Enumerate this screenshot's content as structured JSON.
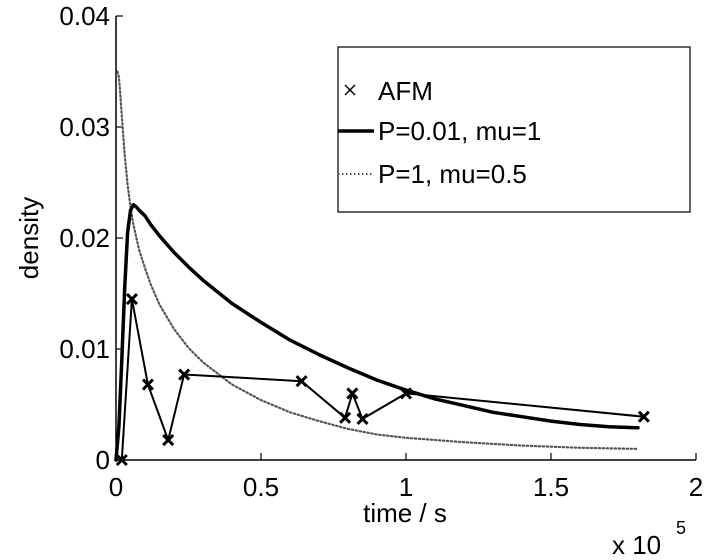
{
  "chart_data": {
    "type": "line",
    "xlabel": "time / s",
    "ylabel": "density",
    "x_multiplier_label": "x 10",
    "x_multiplier_exponent": "5",
    "xlim": [
      0,
      2
    ],
    "ylim": [
      0,
      0.04
    ],
    "x_ticks": [
      0,
      0.5,
      1,
      1.5,
      2
    ],
    "x_tick_labels": [
      "0",
      "0.5",
      "1",
      "1.5",
      "2"
    ],
    "y_ticks": [
      0,
      0.01,
      0.02,
      0.03,
      0.04
    ],
    "y_tick_labels": [
      "0",
      "0.01",
      "0.02",
      "0.03",
      "0.04"
    ],
    "grid": false,
    "legend_position": "top-right",
    "series": [
      {
        "name": "AFM",
        "style": "line-with-x-markers",
        "color": "#000000",
        "x": [
          0.02,
          0.055,
          0.11,
          0.18,
          0.235,
          0.64,
          0.79,
          0.815,
          0.85,
          1.0,
          1.82
        ],
        "y": [
          0.0,
          0.0145,
          0.0068,
          0.0018,
          0.0077,
          0.0071,
          0.0038,
          0.006,
          0.0037,
          0.006,
          0.0039
        ]
      },
      {
        "name": "P=0.01, mu=1",
        "style": "solid-thick",
        "color": "#000000",
        "x": [
          0.0,
          0.01,
          0.02,
          0.03,
          0.04,
          0.05,
          0.06,
          0.07,
          0.08,
          0.1,
          0.12,
          0.15,
          0.2,
          0.25,
          0.3,
          0.4,
          0.5,
          0.6,
          0.7,
          0.8,
          0.9,
          1.0,
          1.1,
          1.2,
          1.3,
          1.4,
          1.5,
          1.6,
          1.7,
          1.8
        ],
        "y": [
          0.0,
          0.003,
          0.009,
          0.0155,
          0.0205,
          0.0225,
          0.023,
          0.0228,
          0.0225,
          0.022,
          0.0212,
          0.0202,
          0.0187,
          0.0174,
          0.0162,
          0.0141,
          0.0124,
          0.0108,
          0.0095,
          0.0083,
          0.0072,
          0.0063,
          0.0055,
          0.0049,
          0.0043,
          0.0039,
          0.0035,
          0.0032,
          0.003,
          0.0029
        ]
      },
      {
        "name": "P=1, mu=0.5",
        "style": "dotted",
        "color": "#555555",
        "x": [
          0.005,
          0.01,
          0.015,
          0.02,
          0.03,
          0.04,
          0.05,
          0.06,
          0.08,
          0.1,
          0.12,
          0.15,
          0.2,
          0.25,
          0.3,
          0.4,
          0.5,
          0.6,
          0.7,
          0.8,
          0.9,
          1.0,
          1.2,
          1.4,
          1.6,
          1.8
        ],
        "y": [
          0.035,
          0.0345,
          0.033,
          0.031,
          0.0275,
          0.0248,
          0.0228,
          0.0212,
          0.0189,
          0.0173,
          0.0158,
          0.014,
          0.0118,
          0.0101,
          0.0088,
          0.0068,
          0.0054,
          0.0043,
          0.0035,
          0.0028,
          0.0023,
          0.002,
          0.0016,
          0.0013,
          0.0011,
          0.001
        ]
      }
    ]
  }
}
